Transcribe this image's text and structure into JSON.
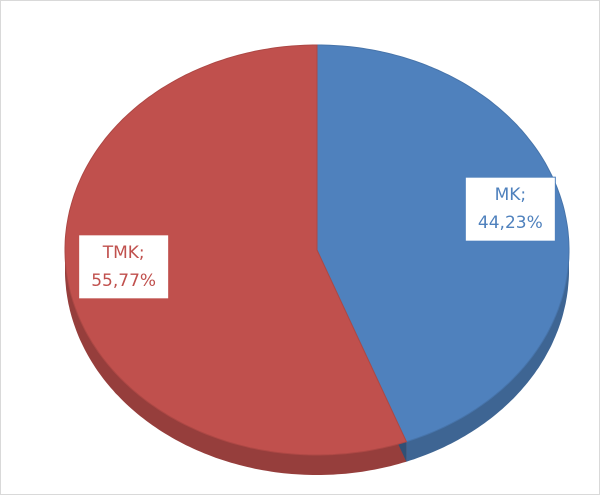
{
  "chart_data": {
    "type": "pie",
    "categories": [
      "MK;",
      "TMK;"
    ],
    "values": [
      44.23,
      55.77
    ],
    "value_labels": [
      "44,23%",
      "55,77%"
    ],
    "colors": [
      "#4f81bd",
      "#c0504d"
    ]
  }
}
